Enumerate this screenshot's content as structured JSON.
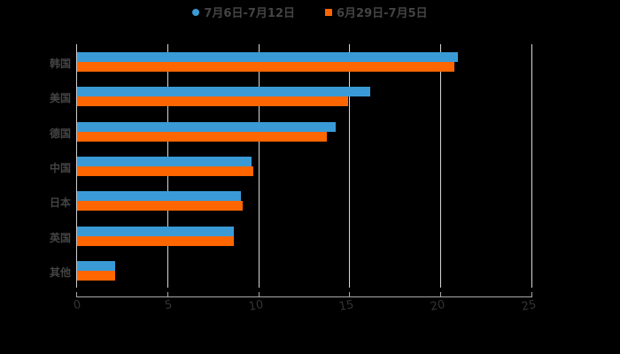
{
  "chart_data": {
    "type": "bar",
    "orientation": "horizontal",
    "title": "",
    "xlabel": "",
    "ylabel": "",
    "categories": [
      "韩国",
      "美国",
      "德国",
      "中国",
      "日本",
      "英国",
      "其他"
    ],
    "series": [
      {
        "name": "7月6日-7月12日",
        "color": "#3a9ad6",
        "values": [
          20.9,
          16.1,
          14.2,
          9.6,
          9.0,
          8.6,
          2.1
        ]
      },
      {
        "name": "6月29日-7月5日",
        "color": "#ff6600",
        "values": [
          20.7,
          14.9,
          13.7,
          9.7,
          9.1,
          8.6,
          2.1
        ]
      }
    ],
    "xlim": [
      0,
      25
    ],
    "xticks": [
      "0",
      "5",
      "10",
      "15",
      "20",
      "25"
    ],
    "grid": true,
    "legend_position": "top"
  },
  "legend": {
    "items": [
      {
        "label": "7月6日-7月12日",
        "color": "#3a9ad6"
      },
      {
        "label": "6月29日-7月5日",
        "color": "#ff6600"
      }
    ]
  }
}
